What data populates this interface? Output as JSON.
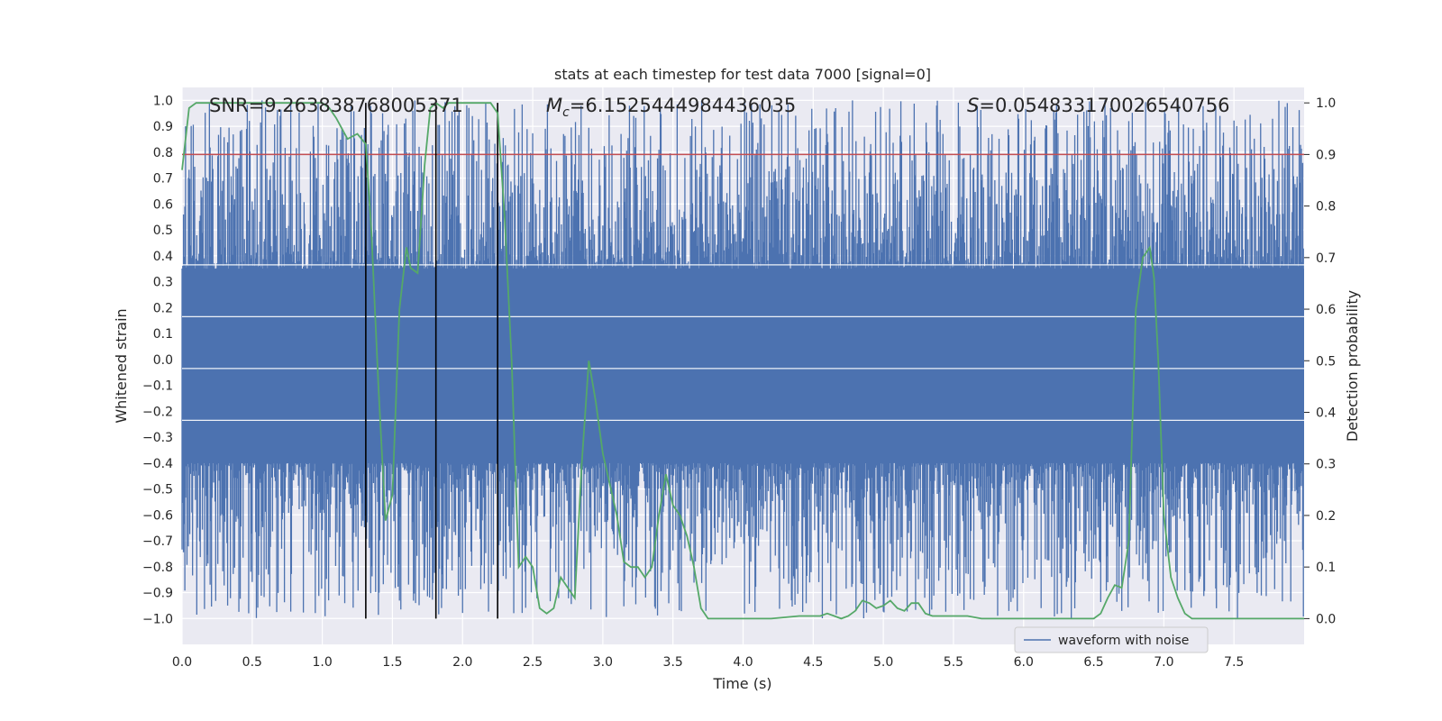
{
  "chart_data": {
    "type": "line",
    "title": "stats at each timestep for test data 7000 [signal=0]",
    "xlabel": "Time (s)",
    "ylabel": "Whitened strain",
    "y2label": "Detection probability",
    "xlim": [
      0.0,
      8.0
    ],
    "ylim": [
      -1.1,
      1.05
    ],
    "y2lim": [
      -0.05,
      1.03
    ],
    "xticks": [
      "0.0",
      "0.5",
      "1.0",
      "1.5",
      "2.0",
      "2.5",
      "3.0",
      "3.5",
      "4.0",
      "4.5",
      "5.0",
      "5.5",
      "6.0",
      "6.5",
      "7.0",
      "7.5"
    ],
    "yticks": [
      "1.0",
      "0.9",
      "0.8",
      "0.7",
      "0.6",
      "0.5",
      "0.4",
      "0.3",
      "0.2",
      "0.1",
      "0.0",
      "−0.1",
      "−0.2",
      "−0.3",
      "−0.4",
      "−0.5",
      "−0.6",
      "−0.7",
      "−0.8",
      "−0.9",
      "−1.0"
    ],
    "y2ticks": [
      "1.0",
      "0.9",
      "0.8",
      "0.7",
      "0.6",
      "0.5",
      "0.4",
      "0.3",
      "0.2",
      "0.1",
      "0.0"
    ],
    "annotations": {
      "snr": "SNR=9.263838768005371",
      "mc_symbol": "M",
      "mc_sub": "c",
      "mc_value": "=6.1525444984436035",
      "s_symbol": "S",
      "s_value": "=0.054833170026540756"
    },
    "threshold": {
      "value": 0.9,
      "axis": "right",
      "color": "#c44e52"
    },
    "vlines": [
      1.31,
      1.81,
      2.25
    ],
    "series": [
      {
        "name": "waveform with noise",
        "color": "#4c72b0",
        "axis": "left",
        "samples": 1600,
        "envelope_upper": [
          0.35,
          1.0
        ],
        "envelope_lower": [
          -0.4,
          -1.0
        ]
      },
      {
        "name": "Detection probability",
        "color": "#55a868",
        "axis": "right",
        "x": [
          0.0,
          0.05,
          0.1,
          0.2,
          0.3,
          0.4,
          0.5,
          0.6,
          0.7,
          0.8,
          0.9,
          1.0,
          1.05,
          1.1,
          1.18,
          1.25,
          1.31,
          1.35,
          1.4,
          1.45,
          1.5,
          1.55,
          1.6,
          1.63,
          1.68,
          1.73,
          1.77,
          1.81,
          1.86,
          1.9,
          1.95,
          2.0,
          2.1,
          2.2,
          2.25,
          2.3,
          2.35,
          2.4,
          2.45,
          2.5,
          2.55,
          2.6,
          2.65,
          2.7,
          2.75,
          2.8,
          2.85,
          2.9,
          2.95,
          3.0,
          3.05,
          3.1,
          3.15,
          3.2,
          3.25,
          3.3,
          3.35,
          3.4,
          3.45,
          3.5,
          3.55,
          3.6,
          3.65,
          3.7,
          3.75,
          3.8,
          3.9,
          4.0,
          4.2,
          4.4,
          4.5,
          4.55,
          4.6,
          4.65,
          4.7,
          4.75,
          4.8,
          4.85,
          4.9,
          4.95,
          5.0,
          5.05,
          5.1,
          5.15,
          5.2,
          5.25,
          5.3,
          5.35,
          5.4,
          5.5,
          5.6,
          5.7,
          6.0,
          6.3,
          6.5,
          6.55,
          6.6,
          6.65,
          6.7,
          6.75,
          6.8,
          6.85,
          6.9,
          6.93,
          6.96,
          7.0,
          7.05,
          7.1,
          7.15,
          7.2,
          7.3,
          7.4,
          7.5,
          7.6,
          7.7,
          7.8,
          8.0
        ],
        "values": [
          0.87,
          0.99,
          1.0,
          1.0,
          1.0,
          1.0,
          1.0,
          1.0,
          1.0,
          1.0,
          1.0,
          1.0,
          0.99,
          0.97,
          0.93,
          0.94,
          0.92,
          0.75,
          0.45,
          0.19,
          0.24,
          0.6,
          0.72,
          0.68,
          0.67,
          0.88,
          0.99,
          1.0,
          0.99,
          1.0,
          1.0,
          1.0,
          1.0,
          1.0,
          0.98,
          0.78,
          0.5,
          0.1,
          0.12,
          0.1,
          0.02,
          0.01,
          0.02,
          0.08,
          0.06,
          0.04,
          0.3,
          0.5,
          0.42,
          0.32,
          0.26,
          0.2,
          0.11,
          0.1,
          0.1,
          0.08,
          0.1,
          0.2,
          0.28,
          0.22,
          0.2,
          0.16,
          0.1,
          0.02,
          0.0,
          0.0,
          0.0,
          0.0,
          0.0,
          0.005,
          0.005,
          0.005,
          0.01,
          0.005,
          0.0,
          0.005,
          0.015,
          0.035,
          0.03,
          0.02,
          0.025,
          0.035,
          0.02,
          0.015,
          0.03,
          0.03,
          0.01,
          0.005,
          0.005,
          0.005,
          0.005,
          0.0,
          0.0,
          0.0,
          0.0,
          0.01,
          0.04,
          0.065,
          0.06,
          0.15,
          0.6,
          0.7,
          0.72,
          0.66,
          0.5,
          0.2,
          0.08,
          0.04,
          0.01,
          0.0,
          0.0,
          0.0,
          0.0,
          0.0,
          0.0,
          0.0,
          0.0
        ]
      }
    ],
    "legend": {
      "label": "waveform with noise",
      "position": "bottom-right"
    }
  }
}
